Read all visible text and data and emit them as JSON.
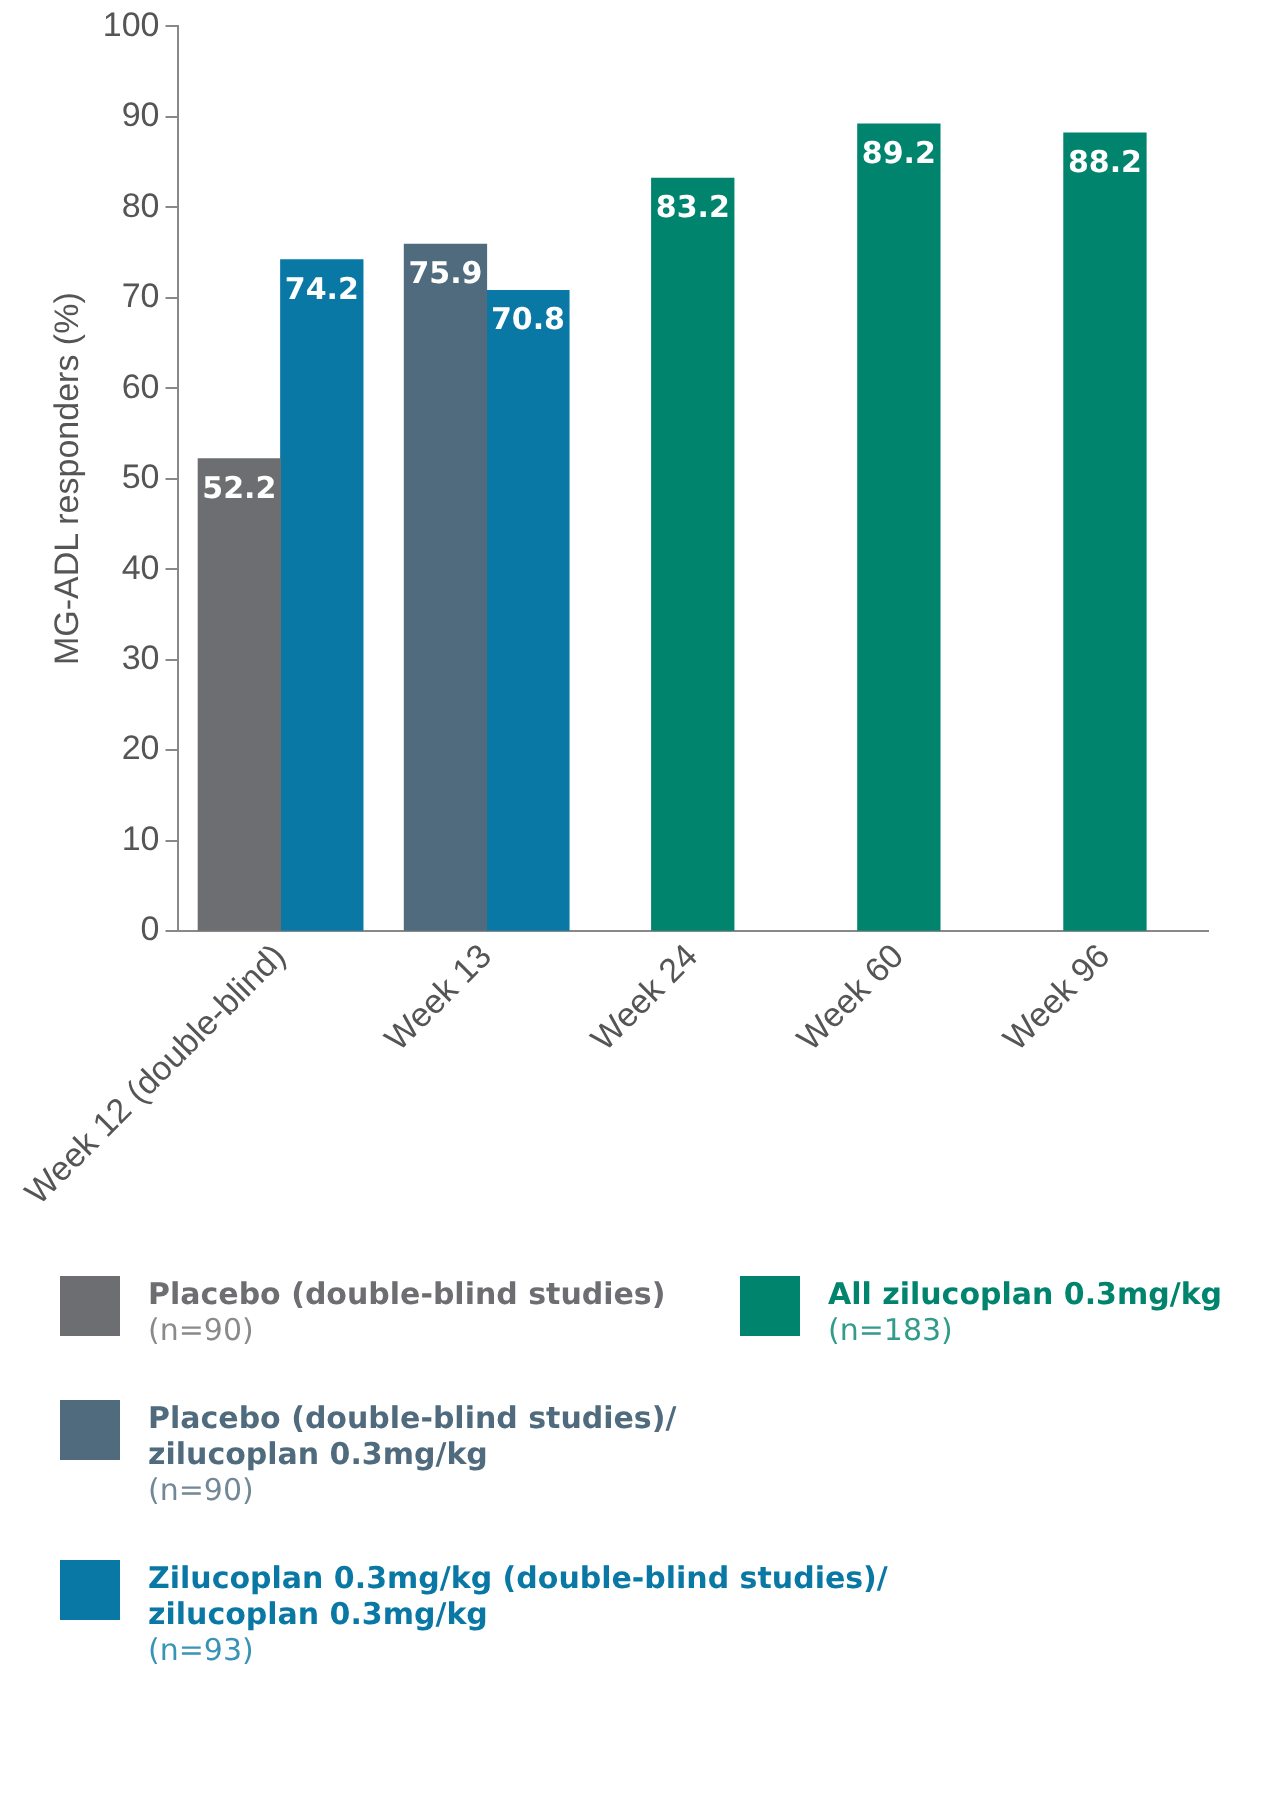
{
  "chart_data": {
    "type": "bar",
    "ylabel": "MG-ADL responders (%)",
    "categories": [
      "Week 12 (double-blind)",
      "Week 13",
      "Week 24",
      "Week 60",
      "Week 96"
    ],
    "series": [
      {
        "name": "Placebo (double-blind studies)\n(n=90)",
        "color": "#6d6e71",
        "values": [
          52.2,
          null,
          null,
          null,
          null
        ]
      },
      {
        "name": "Placebo (double-blind studies)/\nzilucoplan 0.3mg/kg\n(n=90)",
        "color": "#4f6b7d",
        "values": [
          null,
          75.9,
          null,
          null,
          null
        ]
      },
      {
        "name": "Zilucoplan 0.3mg/kg (double-blind studies)/\nzilucoplan 0.3mg/kg\n(n=93)",
        "color": "#0a78a5",
        "values": [
          74.2,
          70.8,
          null,
          null,
          null
        ]
      },
      {
        "name": "All zilucoplan 0.3mg/kg\n(n=183)",
        "color": "#00846e",
        "values": [
          null,
          null,
          83.2,
          89.2,
          88.2
        ]
      }
    ],
    "ylim": [
      0,
      100
    ],
    "yticks": [
      0,
      10,
      20,
      30,
      40,
      50,
      60,
      70,
      80,
      90,
      100
    ],
    "grid": false,
    "legend": "bottom",
    "data_labels": true
  }
}
